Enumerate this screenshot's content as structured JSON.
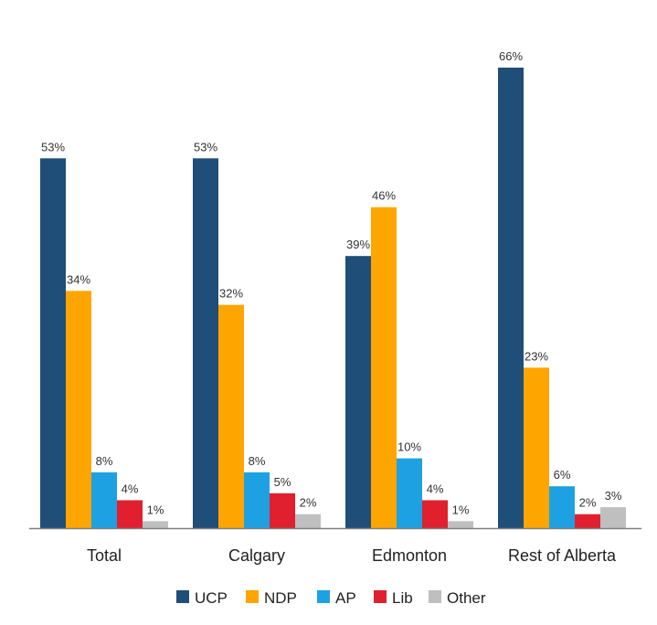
{
  "chart_data": {
    "type": "bar",
    "categories": [
      "Total",
      "Calgary",
      "Edmonton",
      "Rest of Alberta"
    ],
    "series": [
      {
        "name": "UCP",
        "color": "#1f4e79",
        "values": [
          53,
          53,
          39,
          66
        ],
        "labels": [
          "53%",
          "53%",
          "39%",
          "66%"
        ]
      },
      {
        "name": "NDP",
        "color": "#ffa500",
        "values": [
          34,
          32,
          46,
          23
        ],
        "labels": [
          "34%",
          "32%",
          "46%",
          "23%"
        ]
      },
      {
        "name": "AP",
        "color": "#1ea1e2",
        "values": [
          8,
          8,
          10,
          6
        ],
        "labels": [
          "8%",
          "8%",
          "10%",
          "6%"
        ]
      },
      {
        "name": "Lib",
        "color": "#e0202f",
        "values": [
          4,
          5,
          4,
          2
        ],
        "labels": [
          "4%",
          "5%",
          "4%",
          "2%"
        ]
      },
      {
        "name": "Other",
        "color": "#bfbfbf",
        "values": [
          1,
          2,
          1,
          3
        ],
        "labels": [
          "1%",
          "2%",
          "1%",
          "3%"
        ]
      }
    ],
    "ylim": [
      0,
      66
    ],
    "grid": false,
    "legend_position": "bottom"
  }
}
